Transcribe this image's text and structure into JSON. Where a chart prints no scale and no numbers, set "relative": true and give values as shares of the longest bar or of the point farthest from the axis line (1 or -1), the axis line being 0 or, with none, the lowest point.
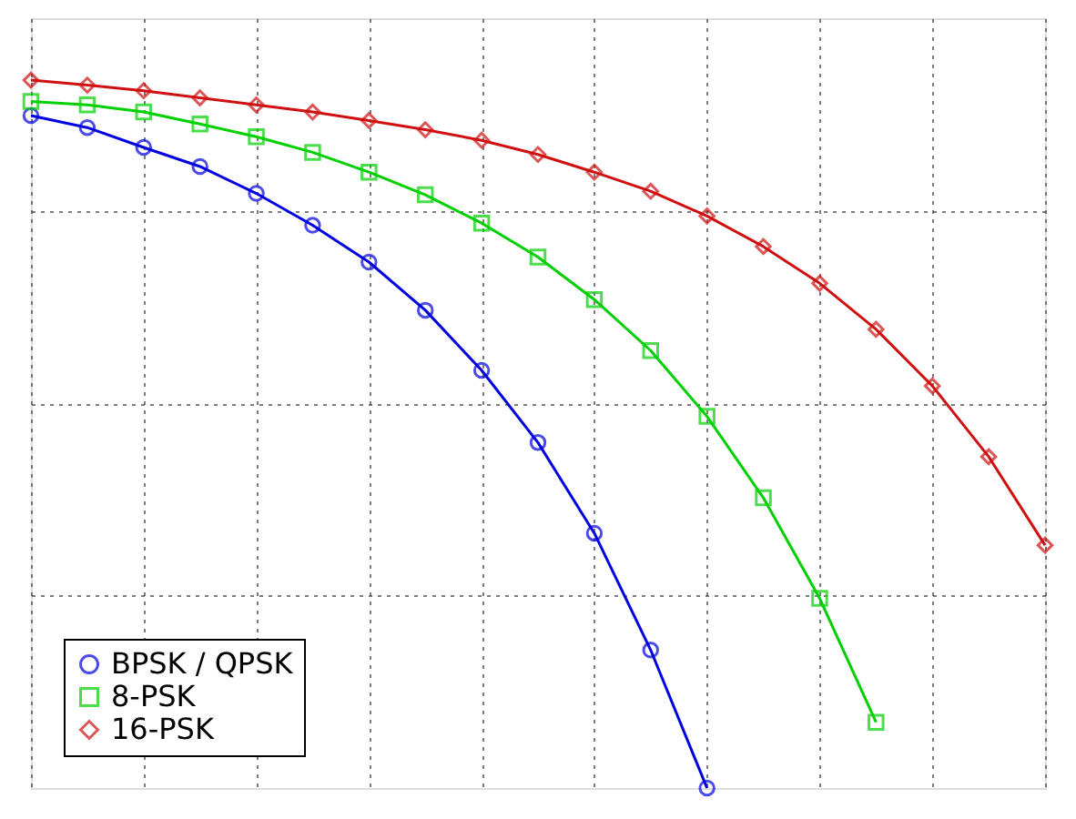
{
  "chart_data": {
    "type": "line",
    "relative": true,
    "categories": [
      null,
      null,
      null,
      null,
      null,
      null,
      null,
      null,
      null,
      null,
      null,
      null,
      null,
      null,
      null,
      null,
      null,
      null,
      null
    ],
    "series": [
      {
        "name": "BPSK / QPSK",
        "color": "#0000e0",
        "marker": "circle",
        "values": [
          0.95,
          0.933,
          0.905,
          0.878,
          0.84,
          0.795,
          0.743,
          0.675,
          0.59,
          0.488,
          0.36,
          0.195,
          0.0,
          null,
          null,
          null,
          null,
          null,
          null
        ]
      },
      {
        "name": "8-PSK",
        "color": "#00d000",
        "marker": "square",
        "values": [
          0.97,
          0.965,
          0.955,
          0.938,
          0.92,
          0.898,
          0.87,
          0.838,
          0.798,
          0.75,
          0.69,
          0.618,
          0.525,
          0.41,
          0.268,
          0.093,
          null,
          null,
          null
        ]
      },
      {
        "name": "16-PSK",
        "color": "#d01010",
        "marker": "diamond",
        "values": [
          1.0,
          0.993,
          0.985,
          0.975,
          0.965,
          0.955,
          0.943,
          0.93,
          0.915,
          0.895,
          0.87,
          0.843,
          0.808,
          0.765,
          0.713,
          0.648,
          0.568,
          0.468,
          0.343
        ]
      }
    ],
    "grid": true,
    "legend": "bottom left",
    "line_style": "solid"
  }
}
